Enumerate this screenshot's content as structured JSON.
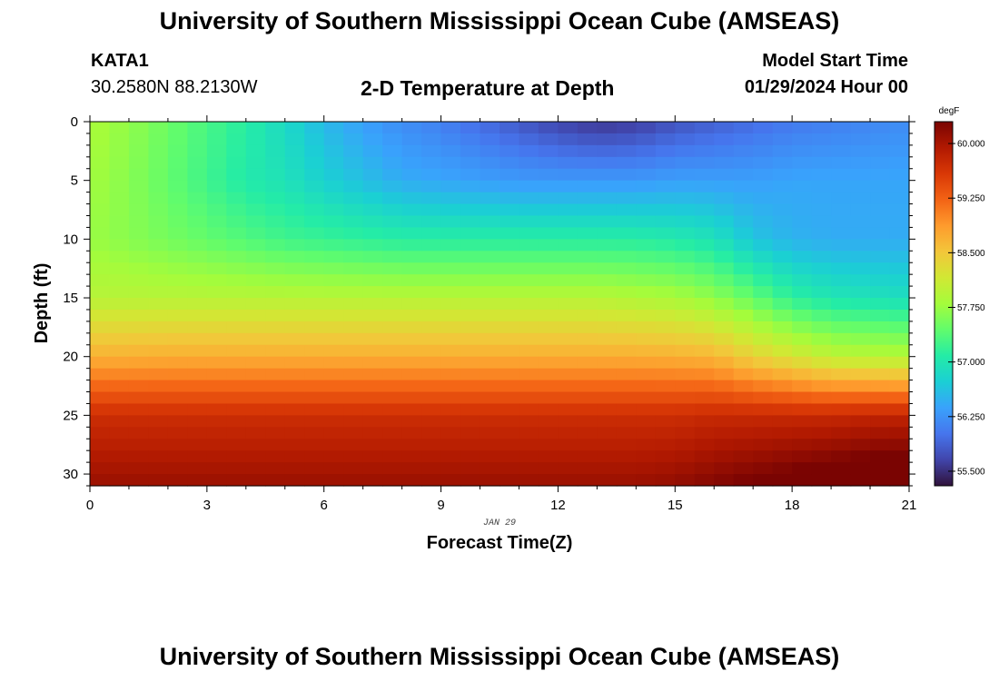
{
  "header": {
    "title": "University of Southern Mississippi Ocean Cube (AMSEAS)",
    "station": "KATA1",
    "coords": "30.2580N  88.2130W",
    "plot_title": "2-D Temperature at Depth",
    "start_label": "Model Start Time",
    "start_value": "01/29/2024 Hour 00"
  },
  "footer": {
    "title": "University of Southern Mississippi Ocean Cube (AMSEAS)"
  },
  "chart_data": {
    "type": "heatmap",
    "title": "2-D Temperature at Depth",
    "xlabel": "Forecast Time(Z)",
    "ylabel": "Depth (ft)",
    "x_date_label": "JAN 29",
    "xlim": [
      0,
      21
    ],
    "ylim": [
      31,
      0
    ],
    "xticks": [
      0,
      3,
      6,
      9,
      12,
      15,
      18,
      21
    ],
    "yticks": [
      0,
      5,
      10,
      15,
      20,
      25,
      30
    ],
    "colorbar": {
      "unit": "degF",
      "min": 55.3,
      "max": 60.3,
      "ticks": [
        "55.500",
        "56.250",
        "57.000",
        "57.750",
        "58.500",
        "59.250",
        "60.000"
      ]
    },
    "colormap": [
      "#30123b",
      "#4145ab",
      "#4675ed",
      "#39a2fc",
      "#1bcfd4",
      "#24eca6",
      "#61fc6c",
      "#a4fc3b",
      "#d1e834",
      "#f3c63a",
      "#fe9b2d",
      "#f36315",
      "#d93806",
      "#b11901",
      "#7a0402"
    ],
    "time_steps": [
      0,
      1,
      2,
      3,
      4,
      5,
      6,
      7,
      8,
      9,
      10,
      11,
      12,
      13,
      14,
      15,
      16,
      17,
      18,
      19,
      20,
      21
    ],
    "profile_depths_ft": [
      0,
      5,
      10,
      15,
      20,
      25,
      31
    ],
    "profiles_degF": [
      [
        57.85,
        57.8,
        57.75,
        57.95,
        58.7,
        59.7,
        60.1
      ],
      [
        57.7,
        57.65,
        57.65,
        57.95,
        58.7,
        59.7,
        60.1
      ],
      [
        57.5,
        57.45,
        57.55,
        57.95,
        58.72,
        59.7,
        60.1
      ],
      [
        57.3,
        57.25,
        57.45,
        57.95,
        58.72,
        59.7,
        60.1
      ],
      [
        57.1,
        57.05,
        57.35,
        57.95,
        58.72,
        59.7,
        60.1
      ],
      [
        56.85,
        56.95,
        57.25,
        57.95,
        58.72,
        59.7,
        60.1
      ],
      [
        56.55,
        56.75,
        57.2,
        57.95,
        58.72,
        59.7,
        60.1
      ],
      [
        56.35,
        56.6,
        57.15,
        57.95,
        58.72,
        59.7,
        60.1
      ],
      [
        56.2,
        56.45,
        57.1,
        57.95,
        58.72,
        59.7,
        60.1
      ],
      [
        56.1,
        56.4,
        57.1,
        57.95,
        58.72,
        59.7,
        60.1
      ],
      [
        55.95,
        56.35,
        57.1,
        57.95,
        58.72,
        59.7,
        60.1
      ],
      [
        55.8,
        56.3,
        57.1,
        57.95,
        58.72,
        59.7,
        60.1
      ],
      [
        55.65,
        56.3,
        57.1,
        57.95,
        58.72,
        59.7,
        60.1
      ],
      [
        55.55,
        56.3,
        57.1,
        57.95,
        58.72,
        59.7,
        60.1
      ],
      [
        55.6,
        56.3,
        57.1,
        57.9,
        58.72,
        59.7,
        60.1
      ],
      [
        55.75,
        56.35,
        57.05,
        57.85,
        58.7,
        59.7,
        60.15
      ],
      [
        55.85,
        56.35,
        56.95,
        57.7,
        58.65,
        59.75,
        60.25
      ],
      [
        55.95,
        56.35,
        56.65,
        57.45,
        58.4,
        59.75,
        60.35
      ],
      [
        56.05,
        56.4,
        56.5,
        57.15,
        58.2,
        59.75,
        60.45
      ],
      [
        56.1,
        56.4,
        56.45,
        57.0,
        58.0,
        59.75,
        60.55
      ],
      [
        56.15,
        56.4,
        56.45,
        56.95,
        57.95,
        59.8,
        60.65
      ],
      [
        56.2,
        56.4,
        56.45,
        56.9,
        57.9,
        59.8,
        60.7
      ]
    ]
  }
}
